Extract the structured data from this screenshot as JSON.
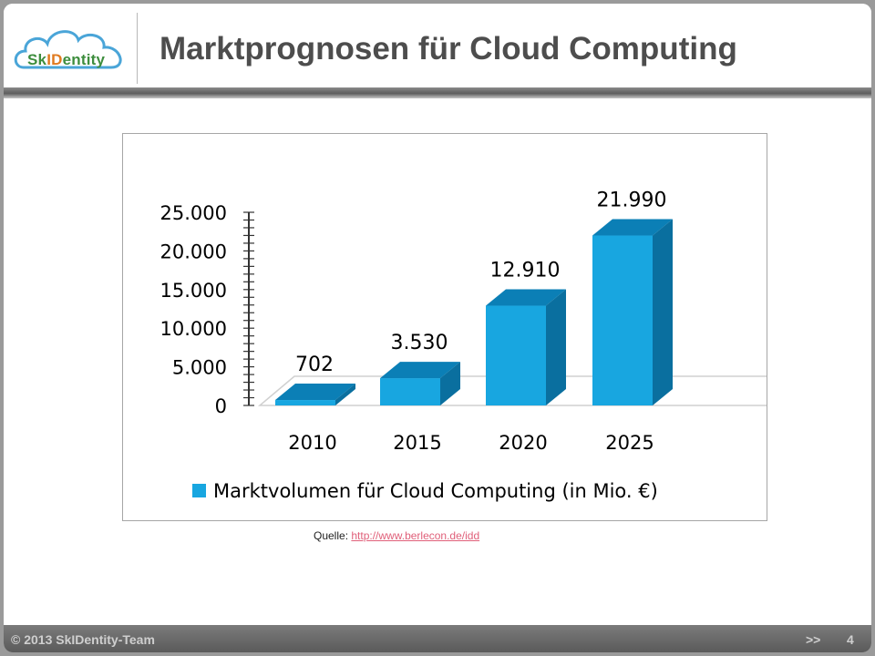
{
  "header": {
    "title": "Marktprognosen für Cloud Computing",
    "logo_text_a": "Sk",
    "logo_text_b": "ID",
    "logo_text_c": "entity"
  },
  "source": {
    "label": "Quelle:",
    "link": "http://www.berlecon.de/idd"
  },
  "footer": {
    "copyright": "© 2013 SkIDentity-Team",
    "next": ">>",
    "page": "4"
  },
  "colors": {
    "bar_front": "#18a6e0",
    "bar_top": "#0b7fb6",
    "bar_side": "#0a6f9f",
    "logo_green": "#3d8d3d",
    "logo_orange": "#e07a1f"
  },
  "chart_data": {
    "type": "bar",
    "categories": [
      "2010",
      "2015",
      "2020",
      "2025"
    ],
    "series": [
      {
        "name": "Marktvolumen für Cloud Computing (in Mio. €)",
        "values": [
          702,
          3530,
          12910,
          21990
        ],
        "labels": [
          "702",
          "3.530",
          "12.910",
          "21.990"
        ]
      }
    ],
    "yticks": [
      "0",
      "5.000",
      "10.000",
      "15.000",
      "20.000",
      "25.000"
    ],
    "ylim": [
      0,
      25000
    ],
    "legend_position": "bottom",
    "style": "3d-column"
  }
}
